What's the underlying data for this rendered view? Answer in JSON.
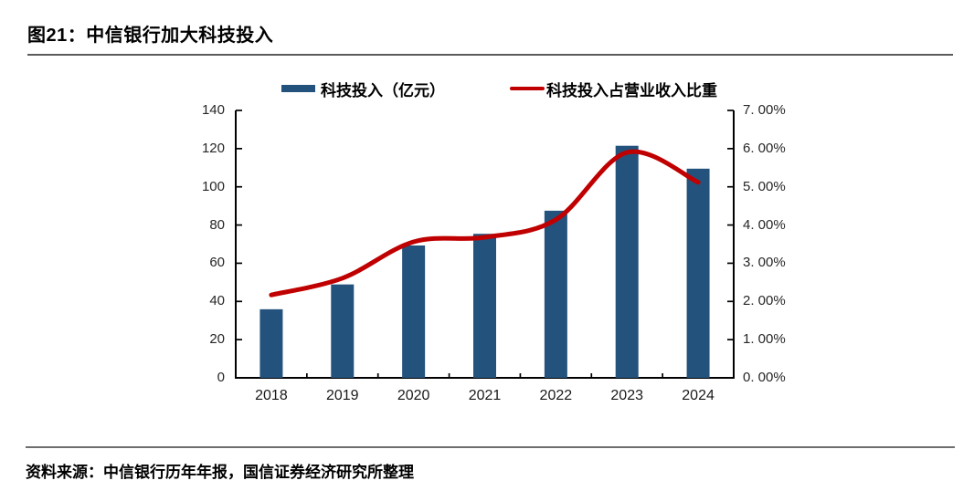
{
  "title": "图21：中信银行加大科技投入",
  "source": "资料来源：中信银行历年年报，国信证券经济研究所整理",
  "legend": {
    "bar_label": "科技投入（亿元）",
    "line_label": "科技投入占营业收入比重"
  },
  "colors": {
    "bar": "#23527C",
    "line": "#C00000",
    "axis": "#000000",
    "tick_text": "#262626"
  },
  "chart_data": {
    "type": "bar",
    "subtype": "bar-and-line-dual-axis",
    "title": "中信银行加大科技投入",
    "categories": [
      "2018",
      "2019",
      "2020",
      "2021",
      "2022",
      "2023",
      "2024"
    ],
    "series": [
      {
        "name": "科技投入（亿元）",
        "type": "bar",
        "axis": "left",
        "values": [
          35.9,
          48.9,
          69.3,
          75.4,
          87.5,
          121.5,
          109.5
        ]
      },
      {
        "name": "科技投入占营业收入比重",
        "type": "line",
        "axis": "right",
        "values": [
          2.17,
          2.61,
          3.56,
          3.68,
          4.14,
          5.9,
          5.12
        ],
        "unit": "%"
      }
    ],
    "left_axis": {
      "min": 0,
      "max": 140,
      "tick_labels": [
        "0",
        "20",
        "40",
        "60",
        "80",
        "100",
        "120",
        "140"
      ]
    },
    "right_axis": {
      "min": 0,
      "max": 7,
      "tick_labels": [
        "0. 00%",
        "1. 00%",
        "2. 00%",
        "3. 00%",
        "4. 00%",
        "5. 00%",
        "6. 00%",
        "7. 00%"
      ]
    },
    "grid": false,
    "legend_position": "top"
  }
}
